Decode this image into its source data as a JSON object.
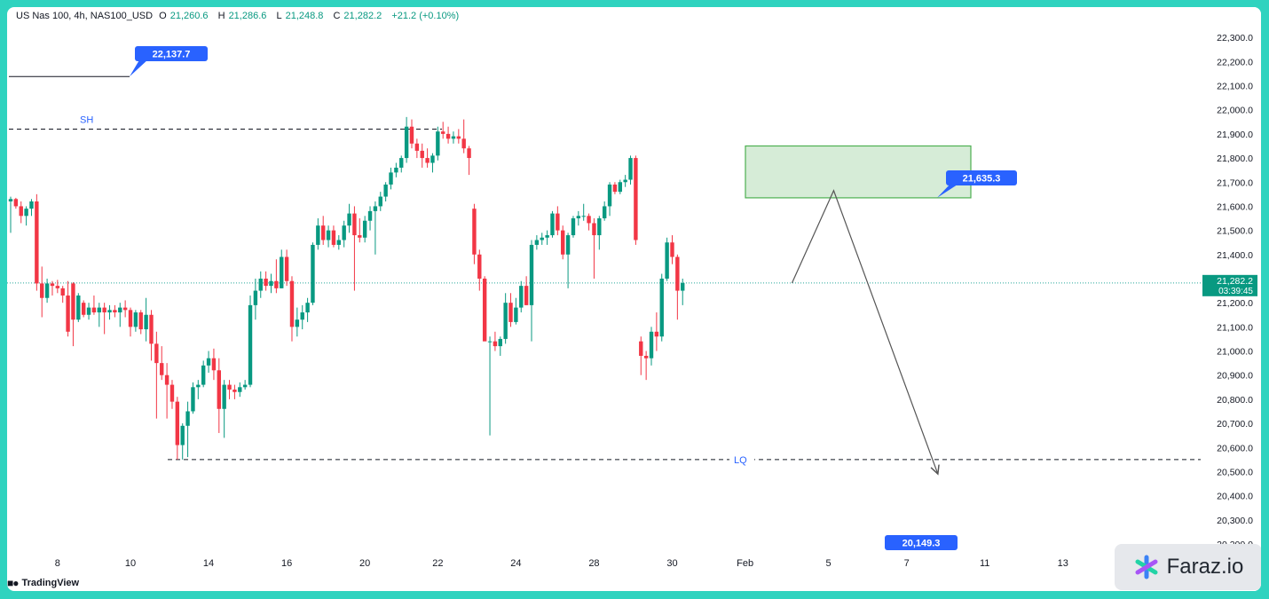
{
  "header": {
    "symbol": "US Nas 100, 4h, NAS100_USD",
    "open_label": "O",
    "open": "21,260.6",
    "high_label": "H",
    "high": "21,286.6",
    "low_label": "L",
    "low": "21,248.8",
    "close_label": "C",
    "close": "21,282.2",
    "change": "+21.2 (+0.10%)"
  },
  "branding": {
    "tradingview": "TradingView",
    "watermark": "Faraz.io"
  },
  "colors": {
    "up": "#089981",
    "down": "#f23645",
    "price_label": "#2962ff",
    "current_price_bg": "#089981",
    "zone_fill": "#c8e6c9",
    "zone_border": "#4caf50"
  },
  "chart_data": {
    "type": "candlestick",
    "timeframe": "4h",
    "ylim": [
      20200,
      22330
    ],
    "y_ticks": [
      {
        "value": 22300,
        "label": "22,300.0"
      },
      {
        "value": 22200,
        "label": "22,200.0"
      },
      {
        "value": 22100,
        "label": "22,100.0"
      },
      {
        "value": 22000,
        "label": "22,000.0"
      },
      {
        "value": 21900,
        "label": "21,900.0"
      },
      {
        "value": 21800,
        "label": "21,800.0"
      },
      {
        "value": 21700,
        "label": "21,700.0"
      },
      {
        "value": 21600,
        "label": "21,600.0"
      },
      {
        "value": 21500,
        "label": "21,500.0"
      },
      {
        "value": 21400,
        "label": "21,400.0"
      },
      {
        "value": 21300,
        "label": "21,300.0"
      },
      {
        "value": 21200,
        "label": "21,200.0"
      },
      {
        "value": 21100,
        "label": "21,100.0"
      },
      {
        "value": 21000,
        "label": "21,000.0"
      },
      {
        "value": 20900,
        "label": "20,900.0"
      },
      {
        "value": 20800,
        "label": "20,800.0"
      },
      {
        "value": 20700,
        "label": "20,700.0"
      },
      {
        "value": 20600,
        "label": "20,600.0"
      },
      {
        "value": 20500,
        "label": "20,500.0"
      },
      {
        "value": 20400,
        "label": "20,400.0"
      },
      {
        "value": 20300,
        "label": "20,300.0"
      },
      {
        "value": 20200,
        "label": "20,200.0"
      }
    ],
    "x_ticks": [
      {
        "index": 9,
        "label": "8"
      },
      {
        "index": 23,
        "label": "10"
      },
      {
        "index": 38,
        "label": "14"
      },
      {
        "index": 53,
        "label": "16"
      },
      {
        "index": 68,
        "label": "20"
      },
      {
        "index": 82,
        "label": "22"
      },
      {
        "index": 97,
        "label": "24"
      },
      {
        "index": 112,
        "label": "28"
      },
      {
        "index": 127,
        "label": "30"
      },
      {
        "index": 141,
        "label": "Feb"
      },
      {
        "index": 157,
        "label": "5"
      },
      {
        "index": 172,
        "label": "7"
      },
      {
        "index": 187,
        "label": "11"
      },
      {
        "index": 202,
        "label": "13"
      }
    ],
    "current_price": {
      "value": 21282.2,
      "label": "21,282.2",
      "countdown": "03:39:45"
    },
    "annotations": [
      {
        "type": "price_label",
        "text": "22,137.7",
        "value": 22137.7
      },
      {
        "type": "price_label",
        "text": "21,635.3",
        "value": 21635.3
      },
      {
        "type": "price_label",
        "text": "20,149.3",
        "value": 20149.3
      },
      {
        "type": "hline",
        "text": "SH",
        "value": 21920
      },
      {
        "type": "hline",
        "text": "LQ",
        "value": 20550
      },
      {
        "type": "zone",
        "from": 21635,
        "to": 21850
      },
      {
        "type": "path",
        "points": [
          {
            "index": 150,
            "value": 21282
          },
          {
            "index": 158,
            "value": 21665
          },
          {
            "index": 178,
            "value": 20490
          }
        ]
      }
    ],
    "candles": [
      {
        "o": 21620,
        "h": 21640,
        "l": 21490,
        "c": 21630
      },
      {
        "o": 21630,
        "h": 21635,
        "l": 21590,
        "c": 21600
      },
      {
        "o": 21600,
        "h": 21620,
        "l": 21530,
        "c": 21560
      },
      {
        "o": 21560,
        "h": 21600,
        "l": 21520,
        "c": 21590
      },
      {
        "o": 21590,
        "h": 21630,
        "l": 21560,
        "c": 21620
      },
      {
        "o": 21620,
        "h": 21650,
        "l": 21250,
        "c": 21280
      },
      {
        "o": 21280,
        "h": 21350,
        "l": 21140,
        "c": 21220
      },
      {
        "o": 21220,
        "h": 21300,
        "l": 21200,
        "c": 21280
      },
      {
        "o": 21280,
        "h": 21290,
        "l": 21230,
        "c": 21270
      },
      {
        "o": 21270,
        "h": 21295,
        "l": 21240,
        "c": 21260
      },
      {
        "o": 21260,
        "h": 21270,
        "l": 21200,
        "c": 21230
      },
      {
        "o": 21230,
        "h": 21290,
        "l": 21060,
        "c": 21080
      },
      {
        "o": 21280,
        "h": 21285,
        "l": 21020,
        "c": 21130
      },
      {
        "o": 21130,
        "h": 21240,
        "l": 21120,
        "c": 21230
      },
      {
        "o": 21200,
        "h": 21210,
        "l": 21140,
        "c": 21150
      },
      {
        "o": 21150,
        "h": 21200,
        "l": 21130,
        "c": 21180
      },
      {
        "o": 21180,
        "h": 21230,
        "l": 21150,
        "c": 21160
      },
      {
        "o": 21160,
        "h": 21200,
        "l": 21100,
        "c": 21180
      },
      {
        "o": 21180,
        "h": 21200,
        "l": 21070,
        "c": 21160
      },
      {
        "o": 21160,
        "h": 21190,
        "l": 21130,
        "c": 21170
      },
      {
        "o": 21170,
        "h": 21190,
        "l": 21140,
        "c": 21160
      },
      {
        "o": 21160,
        "h": 21200,
        "l": 21100,
        "c": 21180
      },
      {
        "o": 21180,
        "h": 21210,
        "l": 21140,
        "c": 21170
      },
      {
        "o": 21170,
        "h": 21180,
        "l": 21060,
        "c": 21100
      },
      {
        "o": 21100,
        "h": 21170,
        "l": 21080,
        "c": 21160
      },
      {
        "o": 21160,
        "h": 21170,
        "l": 21070,
        "c": 21090
      },
      {
        "o": 21090,
        "h": 21220,
        "l": 21040,
        "c": 21150
      },
      {
        "o": 21150,
        "h": 21170,
        "l": 20960,
        "c": 21030
      },
      {
        "o": 21030,
        "h": 21080,
        "l": 20720,
        "c": 20950
      },
      {
        "o": 20950,
        "h": 21020,
        "l": 20880,
        "c": 20900
      },
      {
        "o": 20900,
        "h": 20950,
        "l": 20720,
        "c": 20860
      },
      {
        "o": 20860,
        "h": 20880,
        "l": 20760,
        "c": 20790
      },
      {
        "o": 20790,
        "h": 20810,
        "l": 20550,
        "c": 20610
      },
      {
        "o": 20610,
        "h": 20700,
        "l": 20550,
        "c": 20690
      },
      {
        "o": 20690,
        "h": 20790,
        "l": 20560,
        "c": 20750
      },
      {
        "o": 20750,
        "h": 20870,
        "l": 20740,
        "c": 20850
      },
      {
        "o": 20850,
        "h": 20880,
        "l": 20800,
        "c": 20860
      },
      {
        "o": 20860,
        "h": 20960,
        "l": 20850,
        "c": 20940
      },
      {
        "o": 20940,
        "h": 21000,
        "l": 20910,
        "c": 20970
      },
      {
        "o": 20970,
        "h": 21010,
        "l": 20880,
        "c": 20920
      },
      {
        "o": 20920,
        "h": 20970,
        "l": 20660,
        "c": 20760
      },
      {
        "o": 20760,
        "h": 20880,
        "l": 20640,
        "c": 20860
      },
      {
        "o": 20860,
        "h": 20880,
        "l": 20800,
        "c": 20840
      },
      {
        "o": 20840,
        "h": 20860,
        "l": 20800,
        "c": 20830
      },
      {
        "o": 20830,
        "h": 20870,
        "l": 20810,
        "c": 20850
      },
      {
        "o": 20850,
        "h": 20880,
        "l": 20840,
        "c": 20860
      },
      {
        "o": 20860,
        "h": 21230,
        "l": 20850,
        "c": 21190
      },
      {
        "o": 21190,
        "h": 21300,
        "l": 21130,
        "c": 21250
      },
      {
        "o": 21250,
        "h": 21330,
        "l": 21220,
        "c": 21300
      },
      {
        "o": 21300,
        "h": 21330,
        "l": 21250,
        "c": 21270
      },
      {
        "o": 21270,
        "h": 21320,
        "l": 21240,
        "c": 21290
      },
      {
        "o": 21290,
        "h": 21380,
        "l": 21240,
        "c": 21260
      },
      {
        "o": 21260,
        "h": 21420,
        "l": 21260,
        "c": 21390
      },
      {
        "o": 21390,
        "h": 21420,
        "l": 21270,
        "c": 21290
      },
      {
        "o": 21290,
        "h": 21310,
        "l": 21040,
        "c": 21100
      },
      {
        "o": 21100,
        "h": 21180,
        "l": 21060,
        "c": 21130
      },
      {
        "o": 21130,
        "h": 21190,
        "l": 21090,
        "c": 21160
      },
      {
        "o": 21160,
        "h": 21220,
        "l": 21120,
        "c": 21200
      },
      {
        "o": 21200,
        "h": 21450,
        "l": 21190,
        "c": 21440
      },
      {
        "o": 21440,
        "h": 21550,
        "l": 21420,
        "c": 21520
      },
      {
        "o": 21520,
        "h": 21560,
        "l": 21440,
        "c": 21460
      },
      {
        "o": 21460,
        "h": 21520,
        "l": 21430,
        "c": 21500
      },
      {
        "o": 21500,
        "h": 21520,
        "l": 21430,
        "c": 21440
      },
      {
        "o": 21440,
        "h": 21480,
        "l": 21420,
        "c": 21460
      },
      {
        "o": 21460,
        "h": 21540,
        "l": 21430,
        "c": 21520
      },
      {
        "o": 21520,
        "h": 21610,
        "l": 21490,
        "c": 21570
      },
      {
        "o": 21570,
        "h": 21600,
        "l": 21250,
        "c": 21480
      },
      {
        "o": 21480,
        "h": 21550,
        "l": 21450,
        "c": 21470
      },
      {
        "o": 21470,
        "h": 21560,
        "l": 21450,
        "c": 21540
      },
      {
        "o": 21540,
        "h": 21600,
        "l": 21500,
        "c": 21580
      },
      {
        "o": 21580,
        "h": 21620,
        "l": 21400,
        "c": 21600
      },
      {
        "o": 21600,
        "h": 21660,
        "l": 21580,
        "c": 21640
      },
      {
        "o": 21640,
        "h": 21700,
        "l": 21620,
        "c": 21690
      },
      {
        "o": 21690,
        "h": 21760,
        "l": 21670,
        "c": 21740
      },
      {
        "o": 21740,
        "h": 21780,
        "l": 21720,
        "c": 21760
      },
      {
        "o": 21760,
        "h": 21810,
        "l": 21740,
        "c": 21800
      },
      {
        "o": 21800,
        "h": 21970,
        "l": 21780,
        "c": 21930
      },
      {
        "o": 21930,
        "h": 21960,
        "l": 21840,
        "c": 21860
      },
      {
        "o": 21860,
        "h": 21880,
        "l": 21800,
        "c": 21830
      },
      {
        "o": 21830,
        "h": 21860,
        "l": 21760,
        "c": 21800
      },
      {
        "o": 21800,
        "h": 21840,
        "l": 21760,
        "c": 21780
      },
      {
        "o": 21780,
        "h": 21820,
        "l": 21740,
        "c": 21810
      },
      {
        "o": 21810,
        "h": 21930,
        "l": 21790,
        "c": 21910
      },
      {
        "o": 21910,
        "h": 21950,
        "l": 21880,
        "c": 21900
      },
      {
        "o": 21900,
        "h": 21930,
        "l": 21860,
        "c": 21880
      },
      {
        "o": 21880,
        "h": 21910,
        "l": 21860,
        "c": 21890
      },
      {
        "o": 21890,
        "h": 21920,
        "l": 21860,
        "c": 21880
      },
      {
        "o": 21880,
        "h": 21960,
        "l": 21820,
        "c": 21840
      },
      {
        "o": 21840,
        "h": 21850,
        "l": 21730,
        "c": 21800
      },
      {
        "o": 21590,
        "h": 21610,
        "l": 21360,
        "c": 21400
      },
      {
        "o": 21400,
        "h": 21420,
        "l": 21250,
        "c": 21300
      },
      {
        "o": 21300,
        "h": 21310,
        "l": 21050,
        "c": 21040
      },
      {
        "o": 21040,
        "h": 21060,
        "l": 20650,
        "c": 21040
      },
      {
        "o": 21040,
        "h": 21080,
        "l": 21000,
        "c": 21020
      },
      {
        "o": 21020,
        "h": 21060,
        "l": 20980,
        "c": 21050
      },
      {
        "o": 21050,
        "h": 21240,
        "l": 21030,
        "c": 21200
      },
      {
        "o": 21200,
        "h": 21240,
        "l": 21100,
        "c": 21120
      },
      {
        "o": 21120,
        "h": 21220,
        "l": 21110,
        "c": 21180
      },
      {
        "o": 21180,
        "h": 21290,
        "l": 21160,
        "c": 21270
      },
      {
        "o": 21270,
        "h": 21310,
        "l": 21190,
        "c": 21190
      },
      {
        "o": 21190,
        "h": 21460,
        "l": 21040,
        "c": 21440
      },
      {
        "o": 21440,
        "h": 21480,
        "l": 21420,
        "c": 21460
      },
      {
        "o": 21460,
        "h": 21490,
        "l": 21440,
        "c": 21470
      },
      {
        "o": 21470,
        "h": 21500,
        "l": 21440,
        "c": 21480
      },
      {
        "o": 21480,
        "h": 21580,
        "l": 21470,
        "c": 21570
      },
      {
        "o": 21570,
        "h": 21600,
        "l": 21480,
        "c": 21500
      },
      {
        "o": 21500,
        "h": 21520,
        "l": 21380,
        "c": 21400
      },
      {
        "o": 21400,
        "h": 21490,
        "l": 21260,
        "c": 21480
      },
      {
        "o": 21480,
        "h": 21560,
        "l": 21470,
        "c": 21550
      },
      {
        "o": 21550,
        "h": 21580,
        "l": 21520,
        "c": 21560
      },
      {
        "o": 21560,
        "h": 21610,
        "l": 21540,
        "c": 21560
      },
      {
        "o": 21560,
        "h": 21570,
        "l": 21500,
        "c": 21530
      },
      {
        "o": 21530,
        "h": 21550,
        "l": 21300,
        "c": 21480
      },
      {
        "o": 21480,
        "h": 21560,
        "l": 21420,
        "c": 21550
      },
      {
        "o": 21550,
        "h": 21620,
        "l": 21540,
        "c": 21600
      },
      {
        "o": 21600,
        "h": 21700,
        "l": 21560,
        "c": 21690
      },
      {
        "o": 21690,
        "h": 21700,
        "l": 21650,
        "c": 21660
      },
      {
        "o": 21660,
        "h": 21710,
        "l": 21650,
        "c": 21700
      },
      {
        "o": 21700,
        "h": 21730,
        "l": 21680,
        "c": 21710
      },
      {
        "o": 21710,
        "h": 21810,
        "l": 21690,
        "c": 21800
      },
      {
        "o": 21800,
        "h": 21810,
        "l": 21440,
        "c": 21460
      },
      {
        "o": 21040,
        "h": 21060,
        "l": 20900,
        "c": 20980
      },
      {
        "o": 20980,
        "h": 21000,
        "l": 20880,
        "c": 20970
      },
      {
        "o": 20970,
        "h": 21100,
        "l": 20940,
        "c": 21080
      },
      {
        "o": 21080,
        "h": 21160,
        "l": 21000,
        "c": 21060
      },
      {
        "o": 21060,
        "h": 21320,
        "l": 21040,
        "c": 21300
      },
      {
        "o": 21300,
        "h": 21470,
        "l": 21290,
        "c": 21450
      },
      {
        "o": 21450,
        "h": 21480,
        "l": 21360,
        "c": 21390
      },
      {
        "o": 21390,
        "h": 21400,
        "l": 21130,
        "c": 21250
      },
      {
        "o": 21250,
        "h": 21300,
        "l": 21190,
        "c": 21282
      }
    ]
  }
}
